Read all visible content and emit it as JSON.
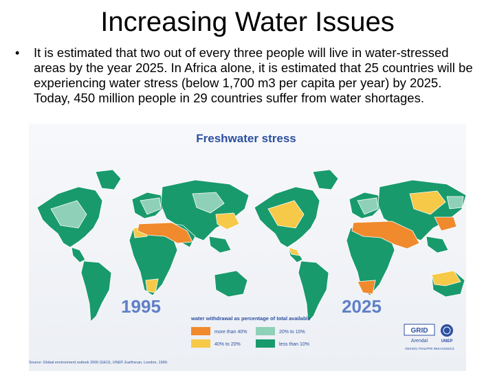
{
  "slide": {
    "title": "Increasing Water Issues",
    "bullet_symbol": "•",
    "bullet_text": "It is estimated that two out of every three people will live in water-stressed areas by the year 2025. In Africa alone, it is estimated that 25 countries will be experiencing water stress (below 1,700 m3 per capita per year) by 2025. Today, 450 million people in 29 countries suffer from water shortages."
  },
  "figure": {
    "title": "Freshwater stress",
    "map_left_year": "1995",
    "map_right_year": "2025",
    "legend_title": "water withdrawal as percentage of total available",
    "legend": [
      {
        "label": "more than 40%",
        "color": "#f08a2c"
      },
      {
        "label": "40% to 20%",
        "color": "#f7c948"
      },
      {
        "label": "20% to 10%",
        "color": "#8fd0b9"
      },
      {
        "label": "less than 10%",
        "color": "#199a6c"
      }
    ],
    "grid_logo": "GRID",
    "grid_sub": "Arendal",
    "unep_logo": "UNEP",
    "credit": "DESIGN: PHILIPPE REKACEWICZ",
    "source": "Source: Global environment outlook 2000 (GEO), UNEP, Earthscan, London, 1999."
  }
}
